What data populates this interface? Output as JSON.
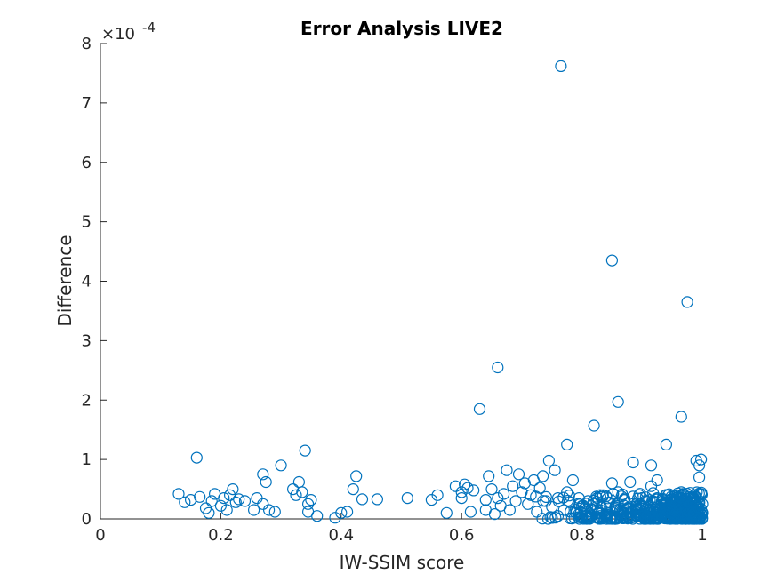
{
  "chart_data": {
    "type": "scatter",
    "title": "Error Analysis LIVE2",
    "xlabel": "IW-SSIM score",
    "ylabel": "Difference",
    "y_exponent_label": "×10",
    "y_exponent_power": "-4",
    "xlim": [
      0,
      1
    ],
    "ylim": [
      0,
      8
    ],
    "xticks": [
      0,
      0.2,
      0.4,
      0.6,
      0.8,
      1
    ],
    "xtick_labels": [
      "0",
      "0.2",
      "0.4",
      "0.6",
      "0.8",
      "1"
    ],
    "yticks": [
      0,
      1,
      2,
      3,
      4,
      5,
      6,
      7,
      8
    ],
    "ytick_labels": [
      "0",
      "1",
      "2",
      "3",
      "4",
      "5",
      "6",
      "7",
      "8"
    ],
    "grid": false,
    "marker_color": "#0072BD",
    "points": [
      [
        0.13,
        0.42
      ],
      [
        0.14,
        0.28
      ],
      [
        0.15,
        0.32
      ],
      [
        0.16,
        1.03
      ],
      [
        0.165,
        0.37
      ],
      [
        0.175,
        0.18
      ],
      [
        0.18,
        0.1
      ],
      [
        0.185,
        0.3
      ],
      [
        0.19,
        0.42
      ],
      [
        0.2,
        0.22
      ],
      [
        0.205,
        0.35
      ],
      [
        0.21,
        0.15
      ],
      [
        0.215,
        0.4
      ],
      [
        0.22,
        0.5
      ],
      [
        0.225,
        0.28
      ],
      [
        0.23,
        0.33
      ],
      [
        0.24,
        0.3
      ],
      [
        0.255,
        0.15
      ],
      [
        0.26,
        0.35
      ],
      [
        0.27,
        0.25
      ],
      [
        0.27,
        0.75
      ],
      [
        0.275,
        0.62
      ],
      [
        0.28,
        0.15
      ],
      [
        0.29,
        0.12
      ],
      [
        0.3,
        0.9
      ],
      [
        0.32,
        0.5
      ],
      [
        0.325,
        0.4
      ],
      [
        0.33,
        0.62
      ],
      [
        0.335,
        0.45
      ],
      [
        0.34,
        1.15
      ],
      [
        0.345,
        0.25
      ],
      [
        0.345,
        0.12
      ],
      [
        0.35,
        0.32
      ],
      [
        0.36,
        0.05
      ],
      [
        0.39,
        0.02
      ],
      [
        0.4,
        0.1
      ],
      [
        0.41,
        0.12
      ],
      [
        0.42,
        0.5
      ],
      [
        0.425,
        0.72
      ],
      [
        0.435,
        0.33
      ],
      [
        0.46,
        0.33
      ],
      [
        0.51,
        0.35
      ],
      [
        0.55,
        0.32
      ],
      [
        0.56,
        0.4
      ],
      [
        0.575,
        0.1
      ],
      [
        0.59,
        0.55
      ],
      [
        0.6,
        0.35
      ],
      [
        0.6,
        0.45
      ],
      [
        0.605,
        0.58
      ],
      [
        0.61,
        0.52
      ],
      [
        0.615,
        0.12
      ],
      [
        0.62,
        0.48
      ],
      [
        0.63,
        1.85
      ],
      [
        0.64,
        0.15
      ],
      [
        0.64,
        0.32
      ],
      [
        0.645,
        0.72
      ],
      [
        0.65,
        0.5
      ],
      [
        0.655,
        0.08
      ],
      [
        0.66,
        2.55
      ],
      [
        0.66,
        0.35
      ],
      [
        0.665,
        0.22
      ],
      [
        0.67,
        0.42
      ],
      [
        0.675,
        0.82
      ],
      [
        0.68,
        0.15
      ],
      [
        0.685,
        0.55
      ],
      [
        0.69,
        0.3
      ],
      [
        0.695,
        0.75
      ],
      [
        0.7,
        0.45
      ],
      [
        0.705,
        0.6
      ],
      [
        0.71,
        0.25
      ],
      [
        0.715,
        0.4
      ],
      [
        0.72,
        0.65
      ],
      [
        0.725,
        0.12
      ],
      [
        0.73,
        0.52
      ],
      [
        0.735,
        0.72
      ],
      [
        0.74,
        0.3
      ],
      [
        0.745,
        0.98
      ],
      [
        0.75,
        0.2
      ],
      [
        0.755,
        0.82
      ],
      [
        0.76,
        0.35
      ],
      [
        0.76,
        0.05
      ],
      [
        0.765,
        7.62
      ],
      [
        0.77,
        0.15
      ],
      [
        0.775,
        0.45
      ],
      [
        0.775,
        1.25
      ],
      [
        0.78,
        0.28
      ],
      [
        0.785,
        0.65
      ],
      [
        0.79,
        0.1
      ],
      [
        0.795,
        0.35
      ],
      [
        0.8,
        0.22
      ],
      [
        0.805,
        0.18
      ],
      [
        0.81,
        0.3
      ],
      [
        0.815,
        0.05
      ],
      [
        0.82,
        0.25
      ],
      [
        0.82,
        1.57
      ],
      [
        0.825,
        0.35
      ],
      [
        0.83,
        0.15
      ],
      [
        0.835,
        0.4
      ],
      [
        0.84,
        0.08
      ],
      [
        0.845,
        0.28
      ],
      [
        0.85,
        4.35
      ],
      [
        0.85,
        0.6
      ],
      [
        0.855,
        0.2
      ],
      [
        0.86,
        1.97
      ],
      [
        0.86,
        0.45
      ],
      [
        0.865,
        0.12
      ],
      [
        0.87,
        0.32
      ],
      [
        0.875,
        0.05
      ],
      [
        0.88,
        0.62
      ],
      [
        0.885,
        0.95
      ],
      [
        0.885,
        0.25
      ],
      [
        0.89,
        0.15
      ],
      [
        0.895,
        0.4
      ],
      [
        0.9,
        0.08
      ],
      [
        0.905,
        0.3
      ],
      [
        0.91,
        0.2
      ],
      [
        0.915,
        0.55
      ],
      [
        0.915,
        0.9
      ],
      [
        0.92,
        0.12
      ],
      [
        0.925,
        0.35
      ],
      [
        0.925,
        0.65
      ],
      [
        0.93,
        0.05
      ],
      [
        0.935,
        0.25
      ],
      [
        0.94,
        1.25
      ],
      [
        0.94,
        0.4
      ],
      [
        0.945,
        0.15
      ],
      [
        0.95,
        0.3
      ],
      [
        0.955,
        0.1
      ],
      [
        0.96,
        0.2
      ],
      [
        0.965,
        1.72
      ],
      [
        0.965,
        0.45
      ],
      [
        0.97,
        0.08
      ],
      [
        0.975,
        3.65
      ],
      [
        0.975,
        0.3
      ],
      [
        0.98,
        0.15
      ],
      [
        0.985,
        0.35
      ],
      [
        0.99,
        0.98
      ],
      [
        0.99,
        0.05
      ],
      [
        0.995,
        0.9
      ],
      [
        0.995,
        0.7
      ],
      [
        0.998,
        1.0
      ],
      [
        0.998,
        0.42
      ],
      [
        1.0,
        0.25
      ],
      [
        1.0,
        0.1
      ],
      [
        0.97,
        0.22
      ],
      [
        0.96,
        0.05
      ],
      [
        0.955,
        0.38
      ],
      [
        0.945,
        0.05
      ],
      [
        0.93,
        0.18
      ],
      [
        0.92,
        0.28
      ],
      [
        0.91,
        0.1
      ],
      [
        0.9,
        0.22
      ],
      [
        0.89,
        0.05
      ],
      [
        0.88,
        0.18
      ],
      [
        0.87,
        0.1
      ],
      [
        0.86,
        0.25
      ],
      [
        0.84,
        0.2
      ],
      [
        0.83,
        0.05
      ],
      [
        0.81,
        0.12
      ],
      [
        0.8,
        0.05
      ]
    ]
  }
}
